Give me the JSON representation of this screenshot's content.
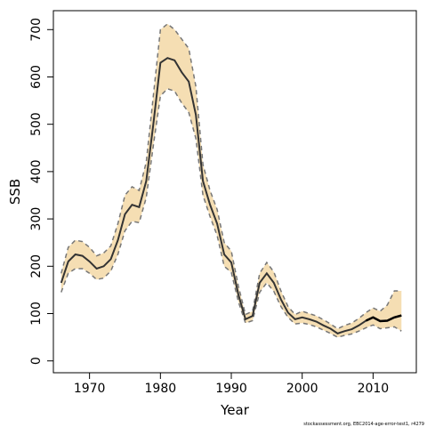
{
  "chart_data": {
    "type": "area",
    "xlabel": "Year",
    "ylabel": "SSB",
    "xlim": [
      1964.9,
      2016.1
    ],
    "ylim": [
      -25,
      740
    ],
    "x_ticks": [
      1970,
      1980,
      1990,
      2000,
      2010
    ],
    "y_ticks": [
      0,
      100,
      200,
      300,
      400,
      500,
      600,
      700
    ],
    "footnote": "stockassessment.org, EBC2014-age-error-test1, r4279",
    "colors": {
      "band": "#f5deb3",
      "estimate": "#333333",
      "estimate_final": "#000000",
      "bounds": "#777777"
    },
    "x": [
      1966,
      1967,
      1968,
      1969,
      1970,
      1971,
      1972,
      1973,
      1974,
      1975,
      1976,
      1977,
      1978,
      1979,
      1980,
      1981,
      1982,
      1983,
      1984,
      1985,
      1986,
      1987,
      1988,
      1989,
      1990,
      1991,
      1992,
      1993,
      1994,
      1995,
      1996,
      1997,
      1998,
      1999,
      2000,
      2001,
      2002,
      2003,
      2004,
      2005,
      2006,
      2007,
      2008,
      2009,
      2010,
      2011,
      2012,
      2013,
      2014
    ],
    "series": [
      {
        "values": [
          165,
          210,
          225,
          222,
          210,
          195,
          200,
          215,
          255,
          310,
          330,
          325,
          380,
          500,
          630,
          640,
          635,
          610,
          590,
          520,
          380,
          330,
          290,
          225,
          208,
          140,
          88,
          95,
          165,
          185,
          165,
          130,
          102,
          88,
          92,
          88,
          83,
          75,
          68,
          58,
          63,
          67,
          75,
          85,
          92,
          84,
          85,
          92,
          96
        ]
      },
      {
        "values": [
          145,
          185,
          195,
          195,
          185,
          172,
          175,
          190,
          225,
          275,
          295,
          292,
          345,
          455,
          560,
          575,
          570,
          545,
          525,
          470,
          350,
          305,
          265,
          200,
          187,
          125,
          80,
          85,
          145,
          165,
          147,
          115,
          92,
          78,
          80,
          77,
          72,
          65,
          58,
          50,
          54,
          57,
          63,
          70,
          76,
          68,
          70,
          72,
          63
        ]
      },
      {
        "values": [
          185,
          240,
          255,
          252,
          240,
          222,
          228,
          243,
          290,
          350,
          368,
          360,
          420,
          560,
          700,
          712,
          700,
          680,
          660,
          580,
          415,
          360,
          320,
          250,
          232,
          158,
          98,
          105,
          185,
          208,
          188,
          148,
          115,
          98,
          105,
          100,
          95,
          87,
          78,
          68,
          75,
          80,
          90,
          102,
          112,
          105,
          118,
          148,
          148
        ]
      }
    ]
  }
}
